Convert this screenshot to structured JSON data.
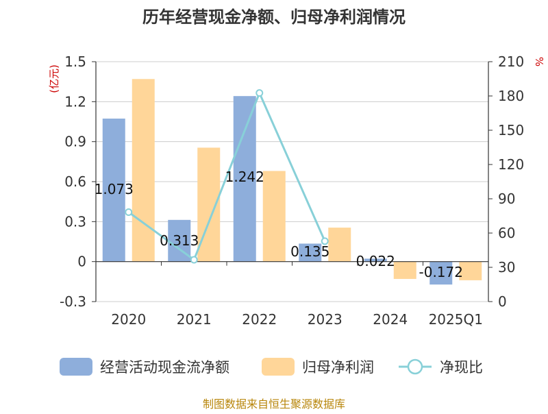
{
  "chart_data": {
    "type": "bar",
    "title": "历年经营现金净额、归母净利润情况",
    "categories": [
      "2020",
      "2021",
      "2022",
      "2023",
      "2024",
      "2025Q1"
    ],
    "series": [
      {
        "name": "经营活动现金流净额",
        "type": "bar",
        "axis": "left",
        "color": "#8eaedb",
        "values": [
          1.073,
          0.313,
          1.242,
          0.135,
          0.022,
          -0.172
        ],
        "labels": [
          "1.073",
          "0.313",
          "1.242",
          "0.135",
          "0.022",
          "-0.172"
        ]
      },
      {
        "name": "归母净利润",
        "type": "bar",
        "axis": "left",
        "color": "#ffd699",
        "values": [
          1.37,
          0.855,
          0.68,
          0.255,
          -0.13,
          -0.14
        ]
      },
      {
        "name": "净现比",
        "type": "line",
        "axis": "right",
        "color": "#88d0d8",
        "values": [
          78.3,
          36.6,
          182.6,
          52.9,
          null,
          null
        ]
      }
    ],
    "y_left": {
      "unit": "(亿元)",
      "min": -0.3,
      "max": 1.5,
      "ticks": [
        "-0.3",
        "0",
        "0.3",
        "0.6",
        "0.9",
        "1.2",
        "1.5"
      ]
    },
    "y_right": {
      "unit": "%",
      "min": 0,
      "max": 210,
      "ticks": [
        "0",
        "30",
        "60",
        "90",
        "120",
        "150",
        "180",
        "210"
      ]
    },
    "grid": true,
    "legend_position": "bottom"
  },
  "source": "制图数据来自恒生聚源数据库"
}
